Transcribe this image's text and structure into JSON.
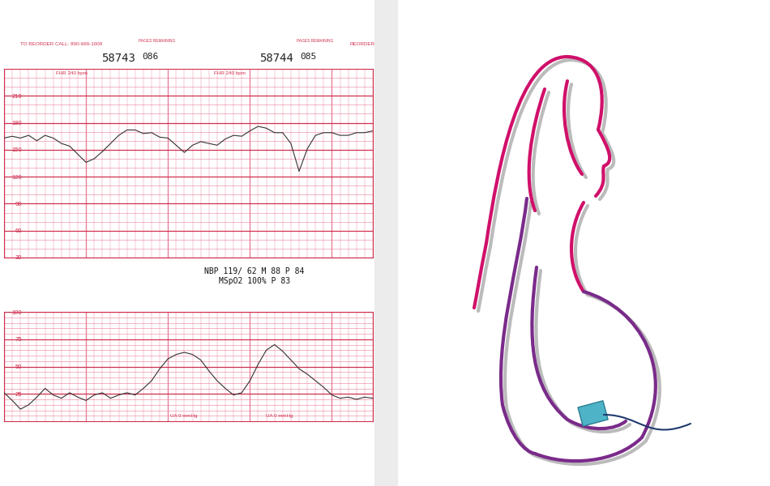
{
  "header": {
    "reorder_call": "TO REORDER CALL: 800-669-1009",
    "pages": [
      {
        "number": "58743",
        "pages_remaining_label": "PAGES REMAINING",
        "pages_remaining": "086"
      },
      {
        "number": "58744",
        "pages_remaining_label": "PAGES REMAINING",
        "pages_remaining": "085"
      }
    ],
    "reorder": "REORDER"
  },
  "chart_data": [
    {
      "type": "line",
      "annotation": "FHR 240 bpm",
      "color": "#333333",
      "values": [
        163,
        165,
        163,
        166,
        160,
        166,
        163,
        157,
        154,
        145,
        136,
        140,
        148,
        157,
        166,
        172,
        172,
        168,
        169,
        164,
        163,
        155,
        147,
        155,
        159,
        157,
        155,
        162,
        166,
        165,
        171,
        176,
        174,
        169,
        169,
        157,
        126,
        151,
        166,
        169,
        169,
        166,
        166,
        169,
        169,
        171
      ],
      "ylim": [
        30,
        240
      ],
      "yticks": [
        30,
        60,
        90,
        120,
        150,
        180,
        210
      ],
      "grid": true,
      "tick_labels": "y"
    },
    {
      "type": "line",
      "annotation": "UA 0 mmHg",
      "color": "#333333",
      "values": [
        26,
        19,
        11,
        15,
        22,
        30,
        24,
        21,
        26,
        22,
        19,
        24,
        26,
        21,
        24,
        26,
        24,
        30,
        37,
        48,
        57,
        61,
        63,
        61,
        56,
        46,
        37,
        30,
        24,
        26,
        37,
        52,
        65,
        70,
        64,
        56,
        48,
        43,
        37,
        31,
        24,
        21,
        22,
        20,
        22,
        21
      ],
      "ylim": [
        0,
        100
      ],
      "yticks": [
        25,
        50,
        75,
        100
      ],
      "grid": true,
      "tick_labels": "y"
    }
  ],
  "vitals": [
    "NBP 119/ 62 M 88 P 84",
    "MSpO2 100% P 83"
  ]
}
